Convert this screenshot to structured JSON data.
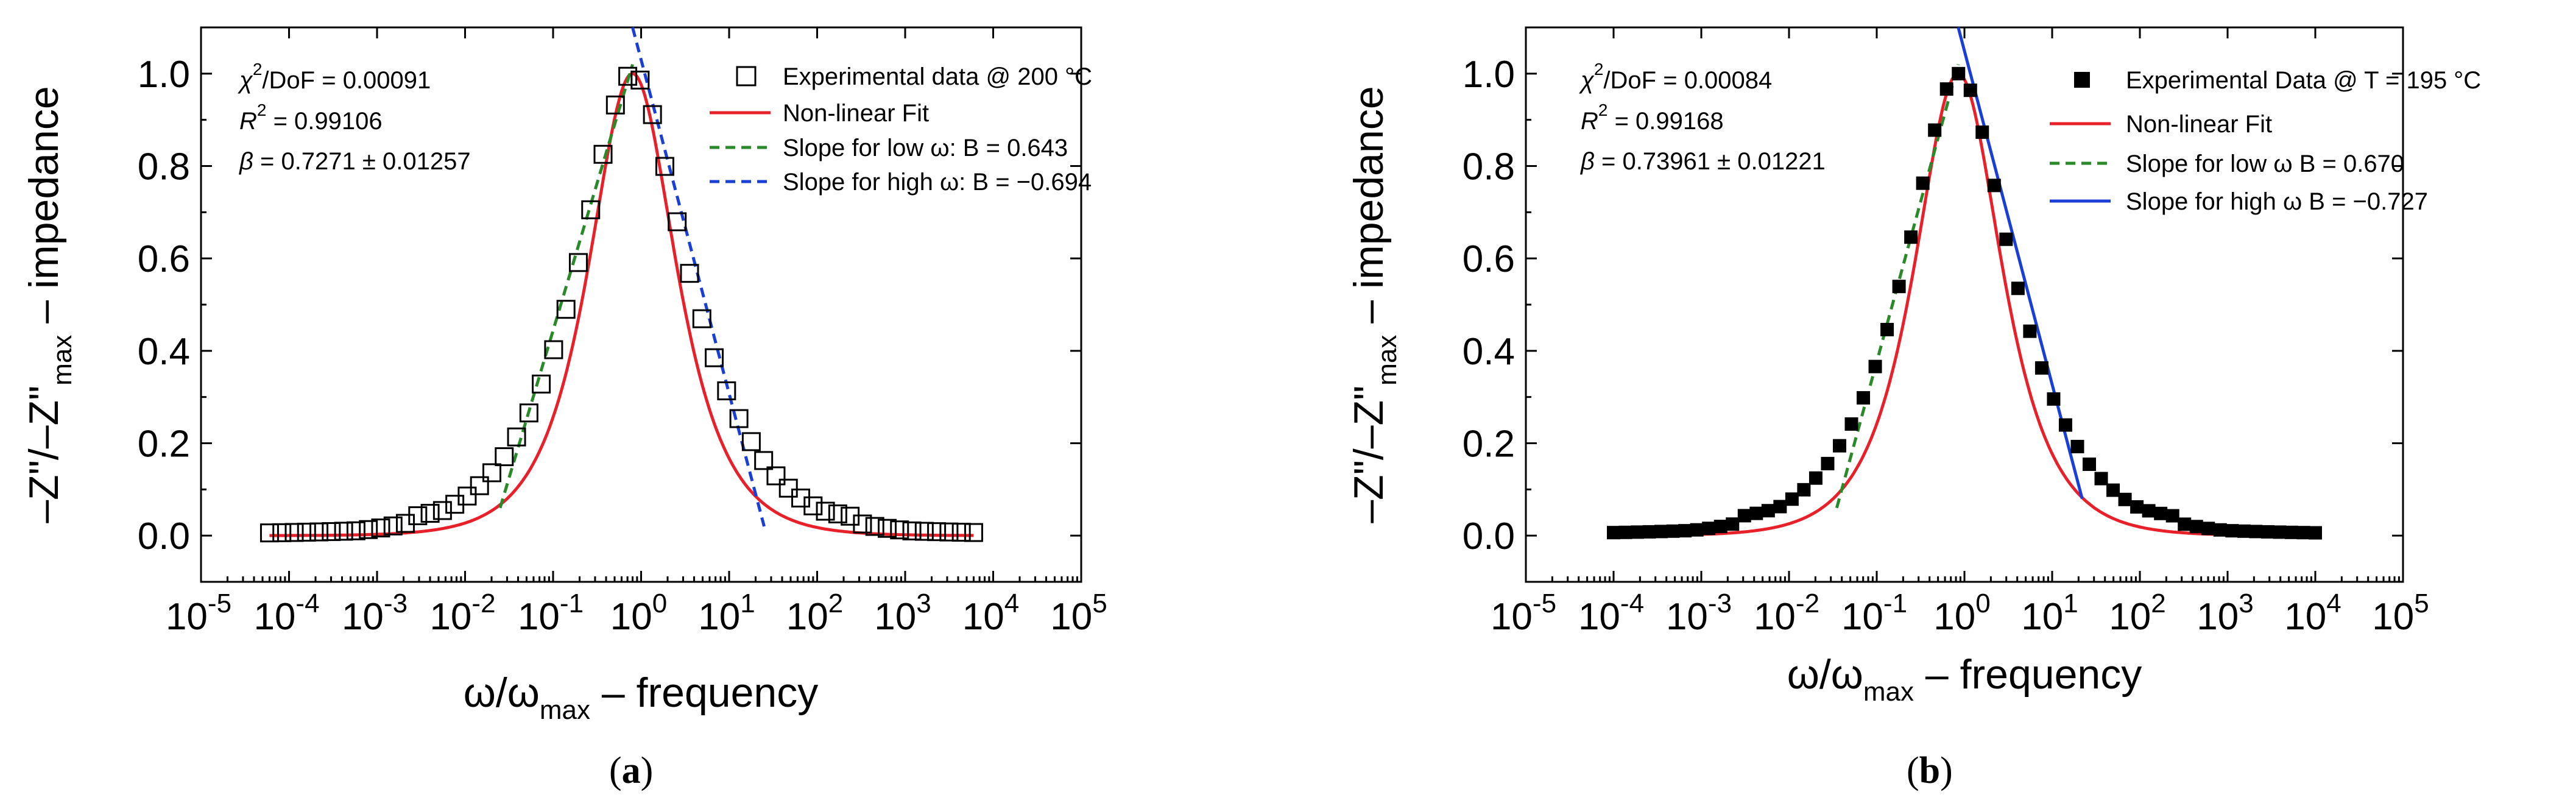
{
  "colors": {
    "fit": "#e8202a",
    "slope_low": "#2a8a2a",
    "slope_high_a": "#1a3fd6",
    "slope_high_b": "#1a3fd6",
    "marker": "#000000"
  },
  "chart_data": [
    {
      "type": "scatter",
      "panel_label": "a",
      "xscale": "log",
      "xlim_exp": [
        -5,
        5
      ],
      "xtick_exponents": [
        "-5",
        "-4",
        "-3",
        "-2",
        "-1",
        "0",
        "1",
        "2",
        "3",
        "4",
        "5"
      ],
      "ylim": [
        -0.1,
        1.1
      ],
      "ytick_labels": [
        "0.0",
        "0.2",
        "0.4",
        "0.6",
        "0.8",
        "1.0"
      ],
      "yticks": [
        0.0,
        0.2,
        0.4,
        0.6,
        0.8,
        1.0
      ],
      "xlabel": {
        "w": "ω/ω",
        "sub": "max",
        "rest": " – frequency"
      },
      "ylabel": {
        "main": "–Z\"/–Z\"",
        "sub": "max",
        "rest": " – impedance"
      },
      "annotations": {
        "chi": {
          "sym": "χ",
          "sup": "2",
          "rest": "/DoF = 0.00091"
        },
        "r2": {
          "sym": "R",
          "sup": "2",
          "rest": " = 0.99106"
        },
        "beta": {
          "sym": "β",
          "rest": " = 0.7271 ± 0.01257"
        }
      },
      "legend": [
        {
          "label": "Experimental data @ 200 °C",
          "style": "open-square"
        },
        {
          "label": "Non-linear Fit",
          "style": "solid-red"
        },
        {
          "label": "Slope for low ω: B = 0.643",
          "style": "dash-green"
        },
        {
          "label": "Slope for high ω: B = −0.694",
          "style": "dash-blue"
        }
      ],
      "marker": "open",
      "peak_x": 0.8,
      "beta_value": 0.7271,
      "data_x_range": [
        6e-05,
        6000
      ],
      "n_points": 58,
      "slope_low": {
        "B": 0.643,
        "x": [
          0.025,
          0.8
        ]
      },
      "slope_high": {
        "B": -0.694,
        "x": [
          0.8,
          25
        ]
      }
    },
    {
      "type": "scatter",
      "panel_label": "b",
      "xscale": "log",
      "xlim_exp": [
        -5,
        5
      ],
      "xtick_exponents": [
        "-5",
        "-4",
        "-3",
        "-2",
        "-1",
        "0",
        "1",
        "2",
        "3",
        "4",
        "5"
      ],
      "ylim": [
        -0.1,
        1.1
      ],
      "ytick_labels": [
        "0.0",
        "0.2",
        "0.4",
        "0.6",
        "0.8",
        "1.0"
      ],
      "yticks": [
        0.0,
        0.2,
        0.4,
        0.6,
        0.8,
        1.0
      ],
      "xlabel": {
        "w": "ω/ω",
        "sub": "max",
        "rest": " – frequency"
      },
      "ylabel": {
        "main": "–Z\"/–Z\"",
        "sub": "max",
        "rest": " – impedance"
      },
      "annotations": {
        "chi": {
          "sym": "χ",
          "sup": "2",
          "rest": "/DoF = 0.00084"
        },
        "r2": {
          "sym": "R",
          "sup": "2",
          "rest": " = 0.99168"
        },
        "beta": {
          "sym": "β",
          "rest": " = 0.73961 ± 0.01221"
        }
      },
      "legend": [
        {
          "label": "Experimental Data @ T = 195 °C",
          "style": "filled-square"
        },
        {
          "label": "Non-linear Fit",
          "style": "solid-red"
        },
        {
          "label": "Slope for low ω B = 0.670",
          "style": "dash-green"
        },
        {
          "label": "Slope for high ω B = −0.727",
          "style": "solid-blue"
        }
      ],
      "marker": "filled",
      "peak_x": 0.85,
      "beta_value": 0.73961,
      "data_x_range": [
        0.0001,
        10000
      ],
      "n_points": 60,
      "slope_low": {
        "B": 0.67,
        "x": [
          0.035,
          0.85
        ]
      },
      "slope_high": {
        "B": -0.727,
        "x": [
          0.85,
          22
        ]
      }
    }
  ]
}
